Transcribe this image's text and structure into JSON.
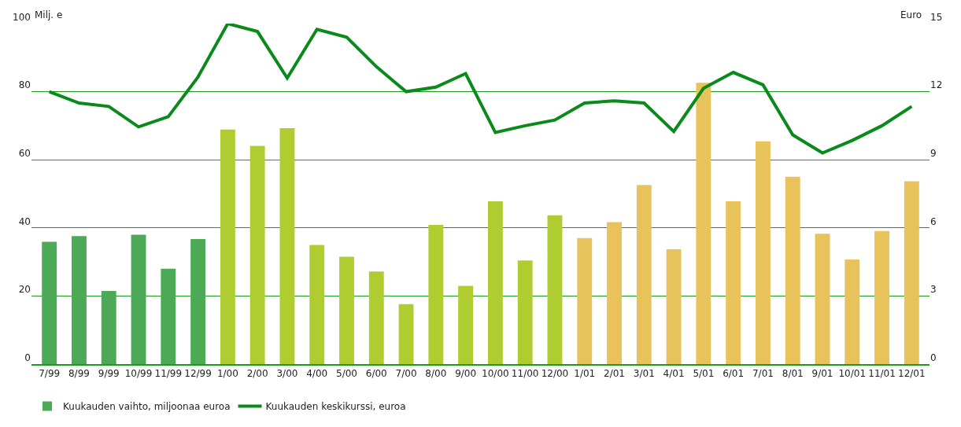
{
  "chart_data": {
    "type": "bar",
    "categories": [
      "7/99",
      "8/99",
      "9/99",
      "10/99",
      "11/99",
      "12/99",
      "1/00",
      "2/00",
      "3/00",
      "4/00",
      "5/00",
      "6/00",
      "7/00",
      "8/00",
      "9/00",
      "10/00",
      "11/00",
      "12/00",
      "1/01",
      "2/01",
      "3/01",
      "4/01",
      "5/01",
      "6/01",
      "7/01",
      "8/01",
      "9/01",
      "10/01",
      "11/01",
      "12/01"
    ],
    "series": [
      {
        "name": "Kuukauden vaihto, miljoonaa euroa",
        "colors": [
          "#4caa57",
          "#4caa57",
          "#4caa57",
          "#4caa57",
          "#4caa57",
          "#4caa57",
          "#afcd30",
          "#afcd30",
          "#afcd30",
          "#afcd30",
          "#afcd30",
          "#afcd30",
          "#afcd30",
          "#afcd30",
          "#afcd30",
          "#afcd30",
          "#afcd30",
          "#afcd30",
          "#e8c25a",
          "#e8c25a",
          "#e8c25a",
          "#e8c25a",
          "#e8c25a",
          "#e8c25a",
          "#e8c25a",
          "#e8c25a",
          "#e8c25a",
          "#e8c25a",
          "#e8c25a",
          "#e8c25a"
        ],
        "values": [
          35.9,
          37.6,
          21.5,
          38,
          28,
          36.7,
          68.9,
          64.1,
          69.3,
          35,
          31.5,
          27.2,
          17.6,
          40.9,
          23,
          47.8,
          30.4,
          43.7,
          37,
          41.7,
          52.6,
          33.7,
          82.6,
          47.8,
          65.4,
          55,
          38.3,
          30.7,
          39.1,
          53.7
        ]
      },
      {
        "name": "Kuukauden keskikurssi, euroa",
        "type": "line",
        "axis": "y2",
        "color": "#0a8a1a",
        "values": [
          12.0,
          11.5,
          11.35,
          10.45,
          10.9,
          12.65,
          15.0,
          14.65,
          12.6,
          14.75,
          14.4,
          13.1,
          12.0,
          12.2,
          12.8,
          10.2,
          10.5,
          10.75,
          11.5,
          11.6,
          11.5,
          10.25,
          12.15,
          12.85,
          12.3,
          10.1,
          9.3,
          9.85,
          10.5,
          11.35
        ]
      }
    ],
    "ylabel": "Milj. e",
    "y2label": "Euro",
    "ylim": [
      0,
      100
    ],
    "yticks": [
      0,
      20,
      40,
      60,
      80,
      100
    ],
    "y2lim": [
      0,
      15
    ],
    "y2ticks": [
      0,
      3,
      6,
      9,
      12,
      15
    ],
    "grid": "y",
    "legend": "bottom left"
  }
}
